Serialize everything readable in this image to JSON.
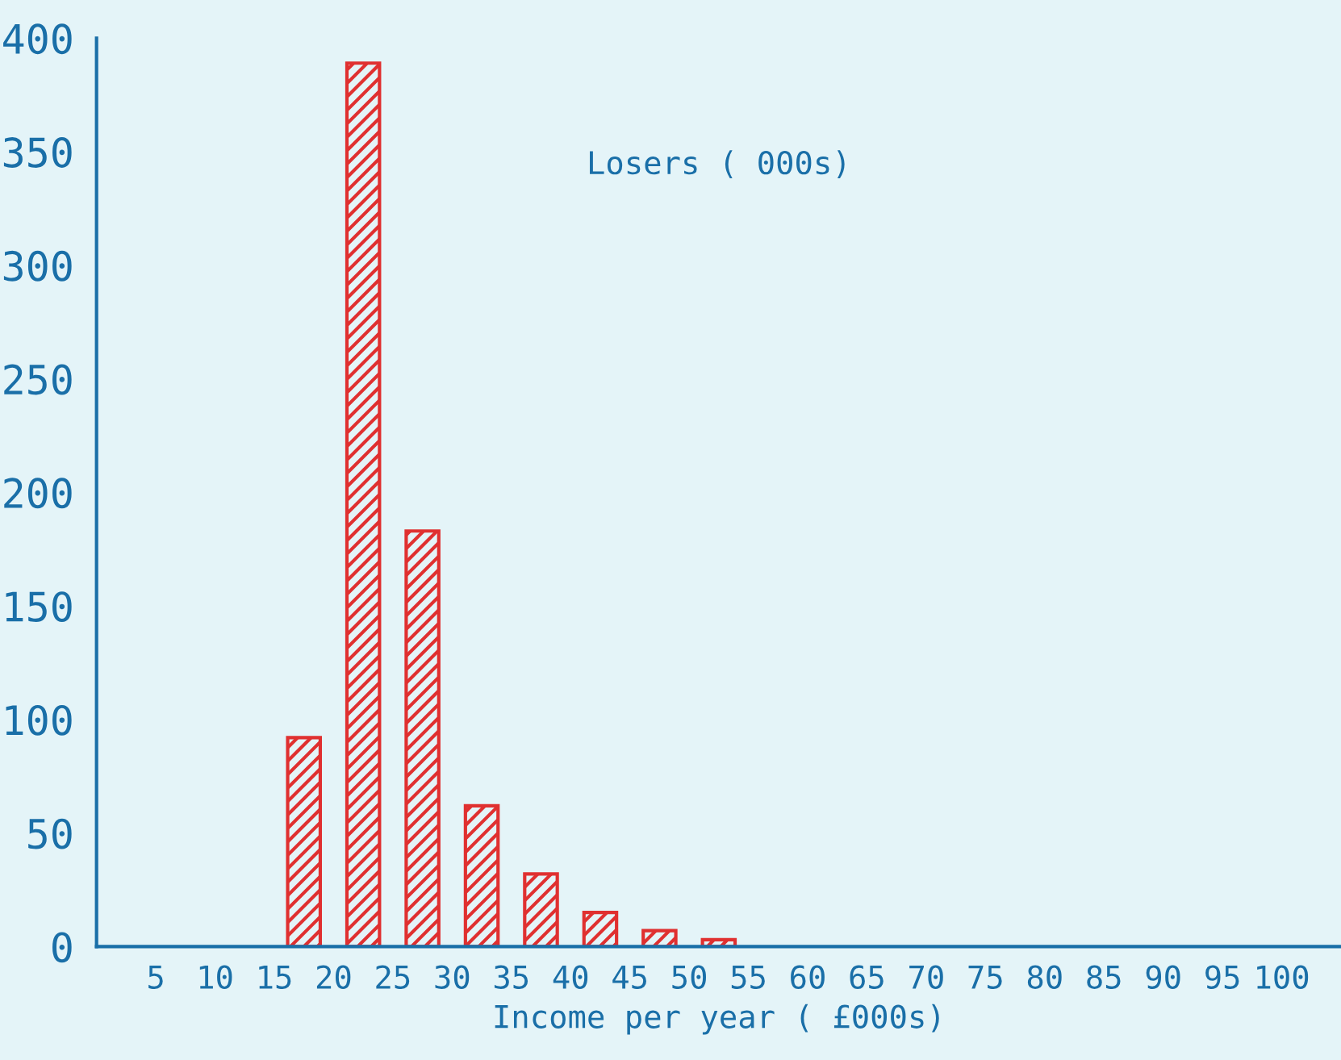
{
  "chart_data": {
    "type": "bar",
    "title": "Losers ( 000s)",
    "xlabel": "Income per year ( £000s)",
    "x": [
      17.5,
      22.5,
      27.5,
      32.5,
      37.5,
      42.5,
      47.5,
      52.5
    ],
    "values": [
      92,
      389,
      183,
      62,
      32,
      15,
      7,
      3
    ],
    "color": "#e03030",
    "xlim": [
      0,
      105
    ],
    "xticks": [
      5,
      10,
      15,
      20,
      25,
      30,
      35,
      40,
      45,
      50,
      55,
      60,
      65,
      70,
      75,
      80,
      85,
      90,
      95,
      100
    ],
    "ylim": [
      0,
      400
    ],
    "yticks": [
      0,
      50,
      100,
      150,
      200,
      250,
      300,
      350,
      400
    ],
    "grid": false,
    "legend": false
  }
}
